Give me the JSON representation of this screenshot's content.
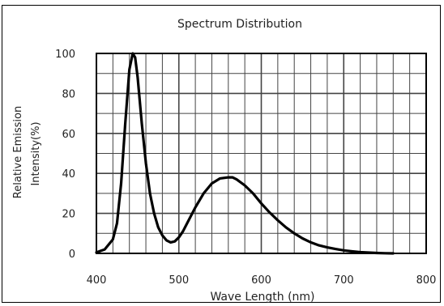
{
  "chart_data": {
    "type": "line",
    "title": "Spectrum Distribution",
    "xlabel": "Wave Length (nm)",
    "ylabel_lines": [
      "Relative Emission",
      "Intensity(%)"
    ],
    "xlim": [
      400,
      800
    ],
    "ylim": [
      0,
      100
    ],
    "x_ticks": [
      400,
      500,
      600,
      700,
      800
    ],
    "y_ticks": [
      0,
      20,
      40,
      60,
      80,
      100
    ],
    "x_minor_step": 20,
    "y_minor_step": 10,
    "grid": true,
    "series": [
      {
        "color": "#000000",
        "x": [
          400,
          410,
          420,
          425,
          430,
          435,
          440,
          444,
          447,
          450,
          455,
          460,
          465,
          470,
          475,
          480,
          485,
          490,
          495,
          500,
          505,
          510,
          520,
          530,
          540,
          550,
          560,
          565,
          570,
          580,
          590,
          600,
          610,
          620,
          630,
          640,
          650,
          660,
          670,
          680,
          690,
          700,
          710,
          720,
          730,
          740,
          750,
          760
        ],
        "y": [
          0.5,
          2,
          7,
          15,
          35,
          65,
          92,
          100,
          98,
          88,
          65,
          45,
          30,
          20,
          13,
          9,
          6.5,
          5.5,
          6,
          8,
          11,
          15,
          23,
          30,
          35,
          37.5,
          38,
          38,
          37,
          34,
          30,
          25,
          20.5,
          16.5,
          13,
          10,
          7.5,
          5.5,
          4,
          3,
          2.2,
          1.5,
          1,
          0.6,
          0.4,
          0.2,
          0.1,
          0
        ]
      }
    ]
  }
}
